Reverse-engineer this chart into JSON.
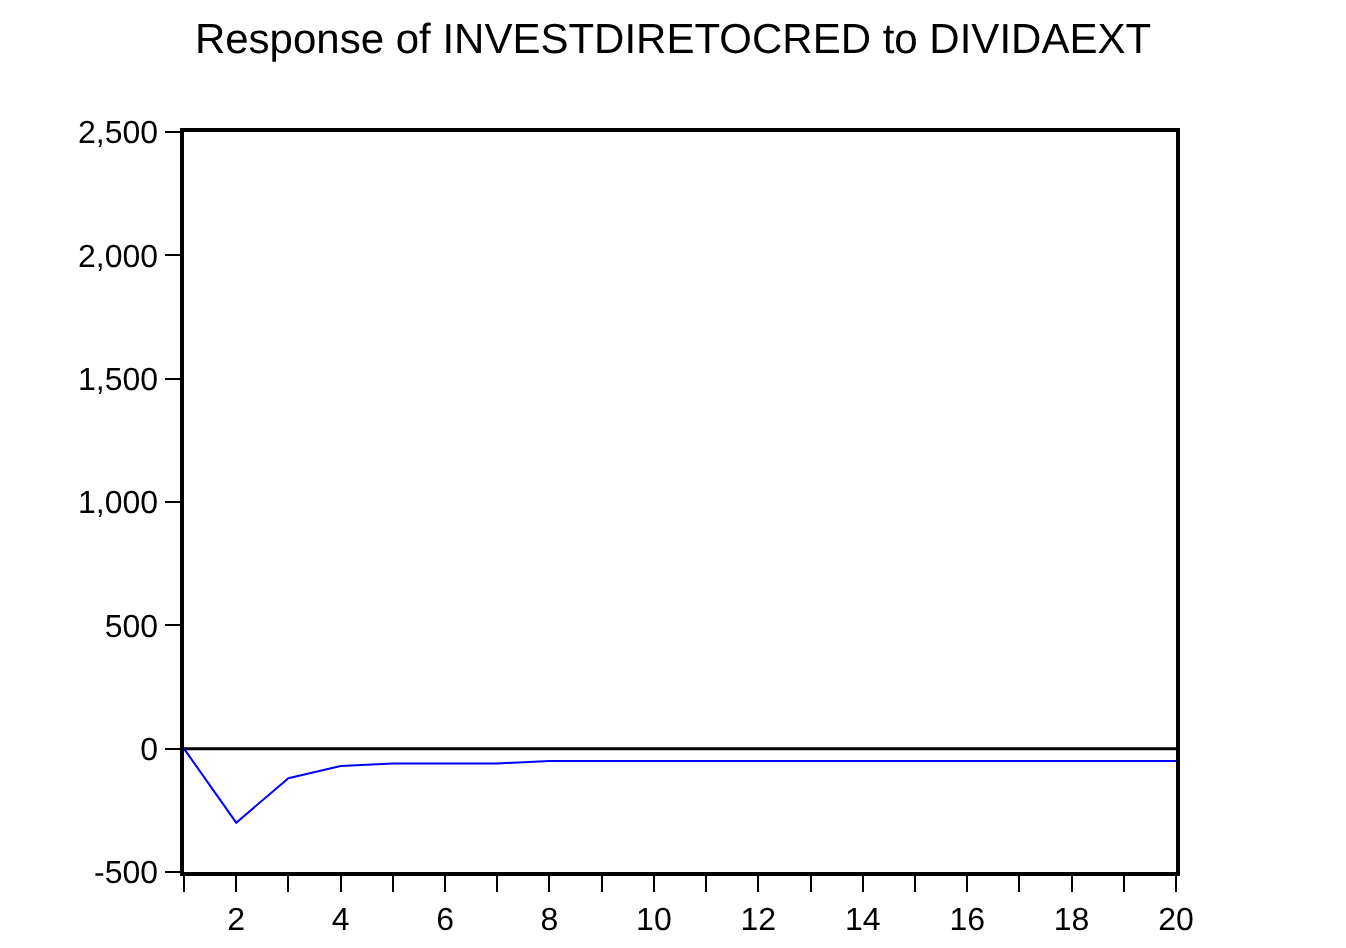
{
  "chart_data": {
    "type": "line",
    "title": "Response of INVESTDIRETOCRED to DIVIDAEXT",
    "x": [
      1,
      2,
      3,
      4,
      5,
      6,
      7,
      8,
      9,
      10,
      11,
      12,
      13,
      14,
      15,
      16,
      17,
      18,
      19,
      20
    ],
    "series": [
      {
        "color": "#0000ff",
        "values": [
          0,
          -300,
          -120,
          -70,
          -60,
          -60,
          -60,
          -50,
          -50,
          -50,
          -50,
          -50,
          -50,
          -50,
          -50,
          -50,
          -50,
          -50,
          -50,
          -50
        ]
      }
    ],
    "xlim": [
      1,
      20
    ],
    "xticks": [
      {
        "value": 1,
        "label": null
      },
      2,
      {
        "value": 3,
        "label": null
      },
      4,
      {
        "value": 5,
        "label": null
      },
      6,
      {
        "value": 7,
        "label": null
      },
      8,
      {
        "value": 9,
        "label": null
      },
      10,
      {
        "value": 11,
        "label": null
      },
      12,
      {
        "value": 13,
        "label": null
      },
      14,
      {
        "value": 15,
        "label": null
      },
      16,
      {
        "value": 17,
        "label": null
      },
      18,
      {
        "value": 19,
        "label": null
      },
      20
    ],
    "ylim": [
      -500,
      2500
    ],
    "yticks": [
      {
        "value": -500,
        "label": "-500"
      },
      {
        "value": 0,
        "label": "0"
      },
      {
        "value": 500,
        "label": "500"
      },
      {
        "value": 1000,
        "label": "1,000"
      },
      {
        "value": 1500,
        "label": "1,500"
      },
      {
        "value": 2000,
        "label": "2,000"
      },
      {
        "value": 2500,
        "label": "2,500"
      }
    ],
    "ref_lines": [
      {
        "axis": "y",
        "value": 0,
        "color": "#000000"
      }
    ],
    "grid": false,
    "marker": "none",
    "line_style": "solid"
  }
}
